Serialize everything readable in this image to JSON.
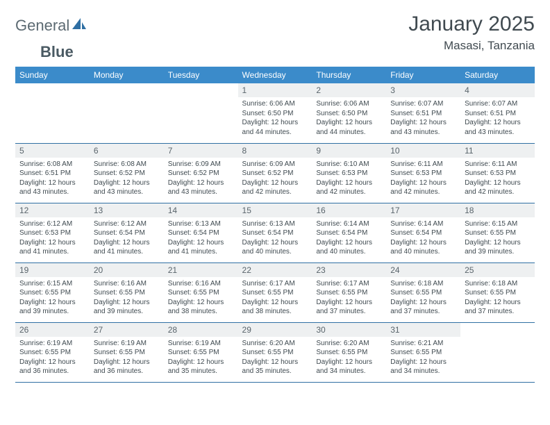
{
  "brand": {
    "prefix": "General",
    "suffix": "Blue"
  },
  "title": "January 2025",
  "location": "Masasi, Tanzania",
  "colors": {
    "header_bg": "#3b8bca",
    "header_text": "#ffffff",
    "daynum_bg": "#eef0f1",
    "border": "#2f6fa3",
    "text": "#3f4a50",
    "logo_gray": "#5c6a72",
    "logo_blue": "#2f6fa3"
  },
  "weekdays": [
    "Sunday",
    "Monday",
    "Tuesday",
    "Wednesday",
    "Thursday",
    "Friday",
    "Saturday"
  ],
  "weeks": [
    [
      {
        "n": "",
        "l1": "",
        "l2": "",
        "l3": "",
        "l4": "",
        "empty": true
      },
      {
        "n": "",
        "l1": "",
        "l2": "",
        "l3": "",
        "l4": "",
        "empty": true
      },
      {
        "n": "",
        "l1": "",
        "l2": "",
        "l3": "",
        "l4": "",
        "empty": true
      },
      {
        "n": "1",
        "l1": "Sunrise: 6:06 AM",
        "l2": "Sunset: 6:50 PM",
        "l3": "Daylight: 12 hours",
        "l4": "and 44 minutes."
      },
      {
        "n": "2",
        "l1": "Sunrise: 6:06 AM",
        "l2": "Sunset: 6:50 PM",
        "l3": "Daylight: 12 hours",
        "l4": "and 44 minutes."
      },
      {
        "n": "3",
        "l1": "Sunrise: 6:07 AM",
        "l2": "Sunset: 6:51 PM",
        "l3": "Daylight: 12 hours",
        "l4": "and 43 minutes."
      },
      {
        "n": "4",
        "l1": "Sunrise: 6:07 AM",
        "l2": "Sunset: 6:51 PM",
        "l3": "Daylight: 12 hours",
        "l4": "and 43 minutes."
      }
    ],
    [
      {
        "n": "5",
        "l1": "Sunrise: 6:08 AM",
        "l2": "Sunset: 6:51 PM",
        "l3": "Daylight: 12 hours",
        "l4": "and 43 minutes."
      },
      {
        "n": "6",
        "l1": "Sunrise: 6:08 AM",
        "l2": "Sunset: 6:52 PM",
        "l3": "Daylight: 12 hours",
        "l4": "and 43 minutes."
      },
      {
        "n": "7",
        "l1": "Sunrise: 6:09 AM",
        "l2": "Sunset: 6:52 PM",
        "l3": "Daylight: 12 hours",
        "l4": "and 43 minutes."
      },
      {
        "n": "8",
        "l1": "Sunrise: 6:09 AM",
        "l2": "Sunset: 6:52 PM",
        "l3": "Daylight: 12 hours",
        "l4": "and 42 minutes."
      },
      {
        "n": "9",
        "l1": "Sunrise: 6:10 AM",
        "l2": "Sunset: 6:53 PM",
        "l3": "Daylight: 12 hours",
        "l4": "and 42 minutes."
      },
      {
        "n": "10",
        "l1": "Sunrise: 6:11 AM",
        "l2": "Sunset: 6:53 PM",
        "l3": "Daylight: 12 hours",
        "l4": "and 42 minutes."
      },
      {
        "n": "11",
        "l1": "Sunrise: 6:11 AM",
        "l2": "Sunset: 6:53 PM",
        "l3": "Daylight: 12 hours",
        "l4": "and 42 minutes."
      }
    ],
    [
      {
        "n": "12",
        "l1": "Sunrise: 6:12 AM",
        "l2": "Sunset: 6:53 PM",
        "l3": "Daylight: 12 hours",
        "l4": "and 41 minutes."
      },
      {
        "n": "13",
        "l1": "Sunrise: 6:12 AM",
        "l2": "Sunset: 6:54 PM",
        "l3": "Daylight: 12 hours",
        "l4": "and 41 minutes."
      },
      {
        "n": "14",
        "l1": "Sunrise: 6:13 AM",
        "l2": "Sunset: 6:54 PM",
        "l3": "Daylight: 12 hours",
        "l4": "and 41 minutes."
      },
      {
        "n": "15",
        "l1": "Sunrise: 6:13 AM",
        "l2": "Sunset: 6:54 PM",
        "l3": "Daylight: 12 hours",
        "l4": "and 40 minutes."
      },
      {
        "n": "16",
        "l1": "Sunrise: 6:14 AM",
        "l2": "Sunset: 6:54 PM",
        "l3": "Daylight: 12 hours",
        "l4": "and 40 minutes."
      },
      {
        "n": "17",
        "l1": "Sunrise: 6:14 AM",
        "l2": "Sunset: 6:54 PM",
        "l3": "Daylight: 12 hours",
        "l4": "and 40 minutes."
      },
      {
        "n": "18",
        "l1": "Sunrise: 6:15 AM",
        "l2": "Sunset: 6:55 PM",
        "l3": "Daylight: 12 hours",
        "l4": "and 39 minutes."
      }
    ],
    [
      {
        "n": "19",
        "l1": "Sunrise: 6:15 AM",
        "l2": "Sunset: 6:55 PM",
        "l3": "Daylight: 12 hours",
        "l4": "and 39 minutes."
      },
      {
        "n": "20",
        "l1": "Sunrise: 6:16 AM",
        "l2": "Sunset: 6:55 PM",
        "l3": "Daylight: 12 hours",
        "l4": "and 39 minutes."
      },
      {
        "n": "21",
        "l1": "Sunrise: 6:16 AM",
        "l2": "Sunset: 6:55 PM",
        "l3": "Daylight: 12 hours",
        "l4": "and 38 minutes."
      },
      {
        "n": "22",
        "l1": "Sunrise: 6:17 AM",
        "l2": "Sunset: 6:55 PM",
        "l3": "Daylight: 12 hours",
        "l4": "and 38 minutes."
      },
      {
        "n": "23",
        "l1": "Sunrise: 6:17 AM",
        "l2": "Sunset: 6:55 PM",
        "l3": "Daylight: 12 hours",
        "l4": "and 37 minutes."
      },
      {
        "n": "24",
        "l1": "Sunrise: 6:18 AM",
        "l2": "Sunset: 6:55 PM",
        "l3": "Daylight: 12 hours",
        "l4": "and 37 minutes."
      },
      {
        "n": "25",
        "l1": "Sunrise: 6:18 AM",
        "l2": "Sunset: 6:55 PM",
        "l3": "Daylight: 12 hours",
        "l4": "and 37 minutes."
      }
    ],
    [
      {
        "n": "26",
        "l1": "Sunrise: 6:19 AM",
        "l2": "Sunset: 6:55 PM",
        "l3": "Daylight: 12 hours",
        "l4": "and 36 minutes."
      },
      {
        "n": "27",
        "l1": "Sunrise: 6:19 AM",
        "l2": "Sunset: 6:55 PM",
        "l3": "Daylight: 12 hours",
        "l4": "and 36 minutes."
      },
      {
        "n": "28",
        "l1": "Sunrise: 6:19 AM",
        "l2": "Sunset: 6:55 PM",
        "l3": "Daylight: 12 hours",
        "l4": "and 35 minutes."
      },
      {
        "n": "29",
        "l1": "Sunrise: 6:20 AM",
        "l2": "Sunset: 6:55 PM",
        "l3": "Daylight: 12 hours",
        "l4": "and 35 minutes."
      },
      {
        "n": "30",
        "l1": "Sunrise: 6:20 AM",
        "l2": "Sunset: 6:55 PM",
        "l3": "Daylight: 12 hours",
        "l4": "and 34 minutes."
      },
      {
        "n": "31",
        "l1": "Sunrise: 6:21 AM",
        "l2": "Sunset: 6:55 PM",
        "l3": "Daylight: 12 hours",
        "l4": "and 34 minutes."
      },
      {
        "n": "",
        "l1": "",
        "l2": "",
        "l3": "",
        "l4": "",
        "empty": true
      }
    ]
  ]
}
